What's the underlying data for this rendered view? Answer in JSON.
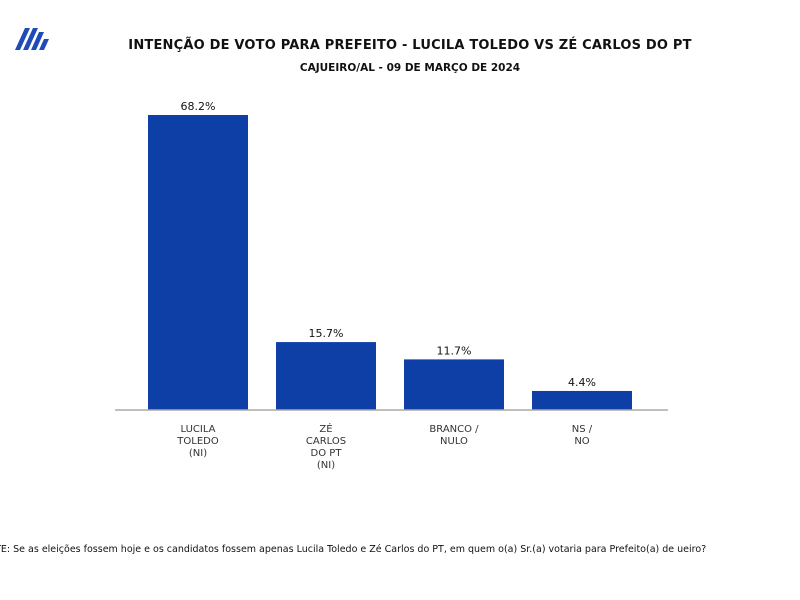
{
  "brand": {
    "logo_icon": "stylized-stripes-logo-icon",
    "logo_color": "#1f4bb8"
  },
  "chart_data": {
    "type": "bar",
    "title": "INTENÇÃO DE VOTO PARA PREFEITO - LUCILA TOLEDO VS ZÉ CARLOS DO PT",
    "subtitle": "CAJUEIRO/AL - 09 DE MARÇO DE 2024",
    "categories": [
      [
        "LUCILA",
        "TOLEDO",
        "(NI)"
      ],
      [
        "ZÉ",
        "CARLOS",
        "DO PT",
        "(NI)"
      ],
      [
        "BRANCO /",
        "NULO"
      ],
      [
        "NS /",
        "NO"
      ]
    ],
    "values": [
      68.2,
      15.7,
      11.7,
      4.4
    ],
    "data_labels": [
      "68.2%",
      "15.7%",
      "11.7%",
      "4.4%"
    ],
    "unit": "%",
    "ylim": [
      0,
      68.2
    ],
    "grid": false,
    "legend": "none",
    "bar_color": "#0d3fa6",
    "axis_color": "#aaaaaa"
  },
  "footnote": "NTE: Se as eleições fossem hoje e os candidatos fossem apenas Lucila Toledo e Zé Carlos do PT, em quem o(a) Sr.(a) votaria para Prefeito(a) de ueiro?"
}
